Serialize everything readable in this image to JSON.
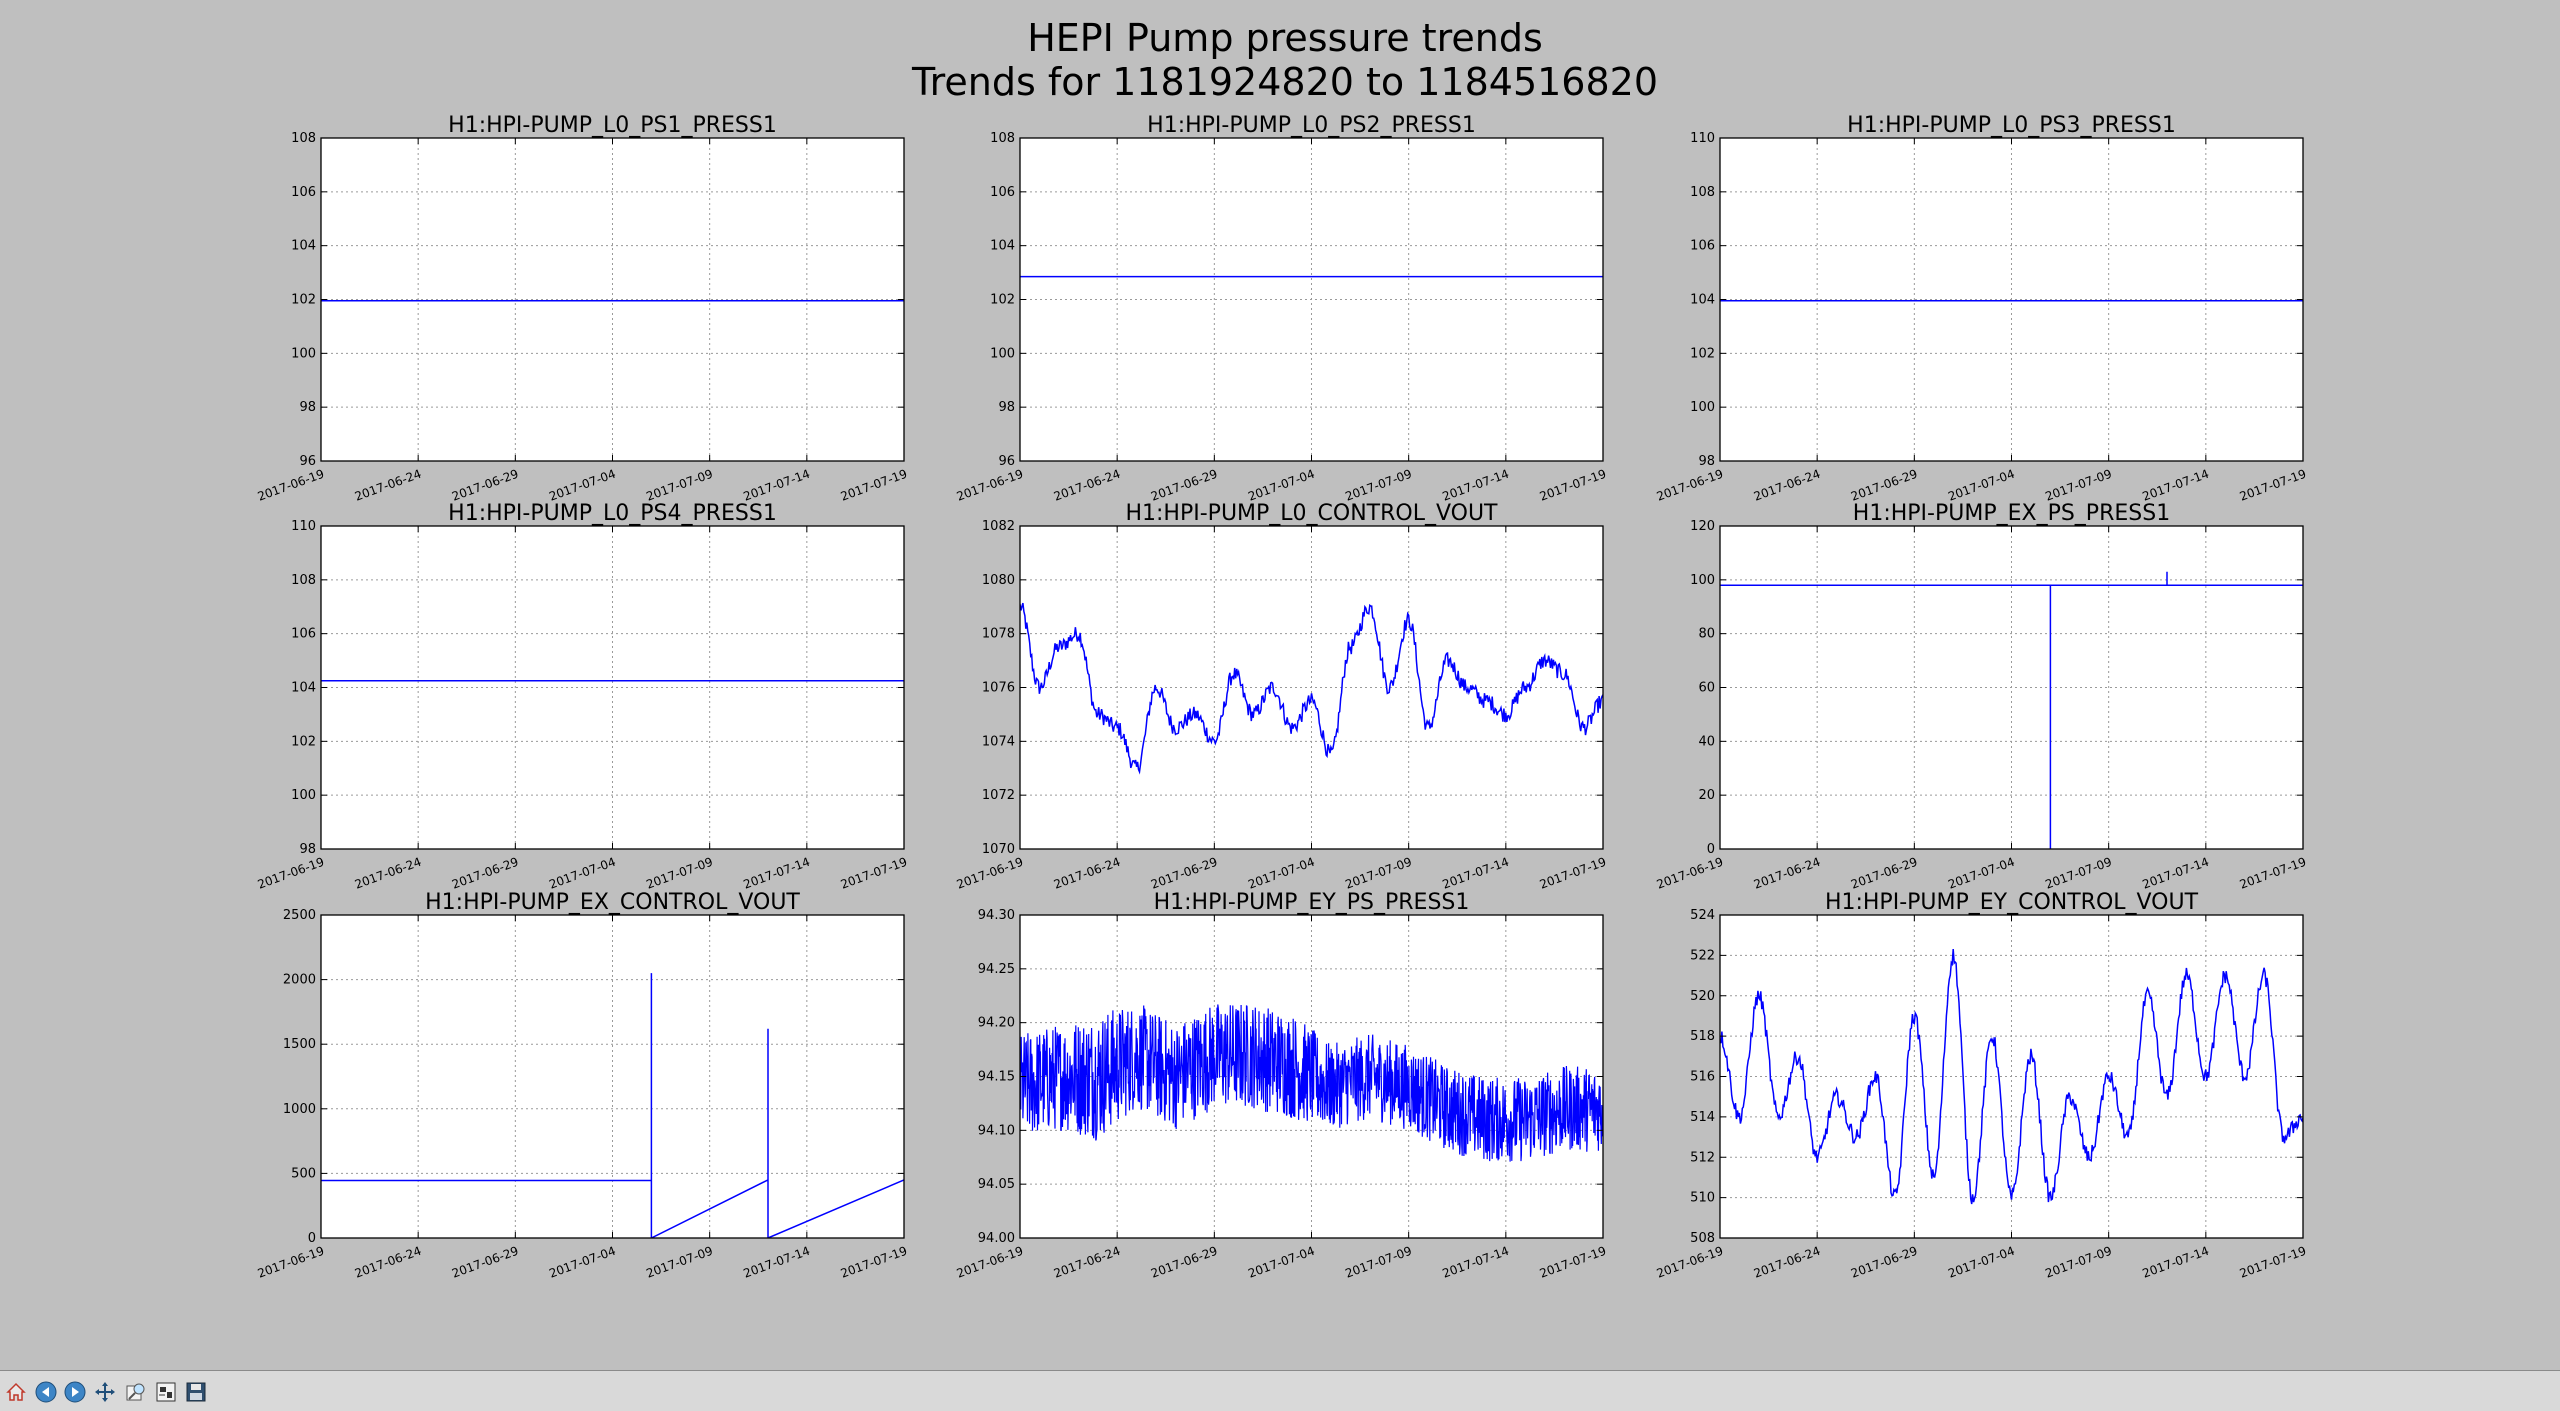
{
  "figure": {
    "title": "HEPI Pump pressure trends",
    "subtitle": "Trends for 1181924820 to 1184516820"
  },
  "chart_data": [
    {
      "type": "line",
      "title": "H1:HPI-PUMP_L0_PS1_PRESS1",
      "ylim": [
        96,
        108
      ],
      "yticks": [
        96,
        98,
        100,
        102,
        104,
        106,
        108
      ],
      "ytick_labels": [
        "96",
        "98",
        "100",
        "102",
        "104",
        "106",
        "108"
      ],
      "xticks": [
        "2017-06-19",
        "2017-06-24",
        "2017-06-29",
        "2017-07-04",
        "2017-07-09",
        "2017-07-14",
        "2017-07-19"
      ],
      "xlim": [
        "2017-06-19",
        "2017-07-19"
      ],
      "grid": true,
      "series": [
        {
          "color": "#0000ff",
          "x": [
            "2017-06-19",
            "2017-07-19"
          ],
          "y": [
            101.95,
            101.95
          ]
        }
      ]
    },
    {
      "type": "line",
      "title": "H1:HPI-PUMP_L0_PS2_PRESS1",
      "ylim": [
        96,
        108
      ],
      "yticks": [
        96,
        98,
        100,
        102,
        104,
        106,
        108
      ],
      "ytick_labels": [
        "96",
        "98",
        "100",
        "102",
        "104",
        "106",
        "108"
      ],
      "xticks": [
        "2017-06-19",
        "2017-06-24",
        "2017-06-29",
        "2017-07-04",
        "2017-07-09",
        "2017-07-14",
        "2017-07-19"
      ],
      "xlim": [
        "2017-06-19",
        "2017-07-19"
      ],
      "grid": true,
      "series": [
        {
          "color": "#0000ff",
          "x": [
            "2017-06-19",
            "2017-07-19"
          ],
          "y": [
            102.85,
            102.85
          ]
        }
      ]
    },
    {
      "type": "line",
      "title": "H1:HPI-PUMP_L0_PS3_PRESS1",
      "ylim": [
        98,
        110
      ],
      "yticks": [
        98,
        100,
        102,
        104,
        106,
        108,
        110
      ],
      "ytick_labels": [
        "98",
        "100",
        "102",
        "104",
        "106",
        "108",
        "110"
      ],
      "xticks": [
        "2017-06-19",
        "2017-06-24",
        "2017-06-29",
        "2017-07-04",
        "2017-07-09",
        "2017-07-14",
        "2017-07-19"
      ],
      "xlim": [
        "2017-06-19",
        "2017-07-19"
      ],
      "grid": true,
      "series": [
        {
          "color": "#0000ff",
          "x": [
            "2017-06-19",
            "2017-07-19"
          ],
          "y": [
            103.95,
            103.95
          ]
        }
      ]
    },
    {
      "type": "line",
      "title": "H1:HPI-PUMP_L0_PS4_PRESS1",
      "ylim": [
        98,
        110
      ],
      "yticks": [
        98,
        100,
        102,
        104,
        106,
        108,
        110
      ],
      "ytick_labels": [
        "98",
        "100",
        "102",
        "104",
        "106",
        "108",
        "110"
      ],
      "xticks": [
        "2017-06-19",
        "2017-06-24",
        "2017-06-29",
        "2017-07-04",
        "2017-07-09",
        "2017-07-14",
        "2017-07-19"
      ],
      "xlim": [
        "2017-06-19",
        "2017-07-19"
      ],
      "grid": true,
      "series": [
        {
          "color": "#0000ff",
          "x": [
            "2017-06-19",
            "2017-07-19"
          ],
          "y": [
            104.25,
            104.25
          ]
        }
      ]
    },
    {
      "type": "line",
      "title": "H1:HPI-PUMP_L0_CONTROL_VOUT",
      "ylim": [
        1070,
        1082
      ],
      "yticks": [
        1070,
        1072,
        1074,
        1076,
        1078,
        1080,
        1082
      ],
      "ytick_labels": [
        "1070",
        "1072",
        "1074",
        "1076",
        "1078",
        "1080",
        "1082"
      ],
      "xticks": [
        "2017-06-19",
        "2017-06-24",
        "2017-06-29",
        "2017-07-04",
        "2017-07-09",
        "2017-07-14",
        "2017-07-19"
      ],
      "xlim": [
        "2017-06-19",
        "2017-07-19"
      ],
      "grid": true,
      "series": [
        {
          "color": "#0000ff",
          "x": [
            "2017-06-19",
            "2017-06-20",
            "2017-06-21",
            "2017-06-22",
            "2017-06-23",
            "2017-06-24",
            "2017-06-25",
            "2017-06-26",
            "2017-06-27",
            "2017-06-28",
            "2017-06-29",
            "2017-06-30",
            "2017-07-01",
            "2017-07-02",
            "2017-07-03",
            "2017-07-04",
            "2017-07-05",
            "2017-07-06",
            "2017-07-07",
            "2017-07-08",
            "2017-07-09",
            "2017-07-10",
            "2017-07-11",
            "2017-07-12",
            "2017-07-13",
            "2017-07-14",
            "2017-07-15",
            "2017-07-16",
            "2017-07-17",
            "2017-07-18",
            "2017-07-19"
          ],
          "y": [
            1079,
            1076,
            1077.5,
            1078,
            1075,
            1074.5,
            1073,
            1076,
            1074.5,
            1075,
            1074,
            1076.5,
            1075,
            1076,
            1074.5,
            1075.5,
            1073.5,
            1077.5,
            1079,
            1076,
            1078.5,
            1074.5,
            1077,
            1076,
            1075.5,
            1075,
            1076,
            1077,
            1076.5,
            1074.5,
            1075.5
          ]
        }
      ]
    },
    {
      "type": "line",
      "title": "H1:HPI-PUMP_EX_PS_PRESS1",
      "ylim": [
        0,
        120
      ],
      "yticks": [
        0,
        20,
        40,
        60,
        80,
        100,
        120
      ],
      "ytick_labels": [
        "0",
        "20",
        "40",
        "60",
        "80",
        "100",
        "120"
      ],
      "xticks": [
        "2017-06-19",
        "2017-06-24",
        "2017-06-29",
        "2017-07-04",
        "2017-07-09",
        "2017-07-14",
        "2017-07-19"
      ],
      "xlim": [
        "2017-06-19",
        "2017-07-19"
      ],
      "grid": true,
      "series": [
        {
          "color": "#0000ff",
          "x": [
            "2017-06-19",
            "2017-07-06",
            "2017-07-06",
            "2017-07-06",
            "2017-07-12",
            "2017-07-12",
            "2017-07-12",
            "2017-07-19"
          ],
          "y": [
            98,
            98,
            0,
            98,
            98,
            103,
            98,
            98
          ]
        }
      ]
    },
    {
      "type": "line",
      "title": "H1:HPI-PUMP_EX_CONTROL_VOUT",
      "ylim": [
        0,
        2500
      ],
      "yticks": [
        0,
        500,
        1000,
        1500,
        2000,
        2500
      ],
      "ytick_labels": [
        "0",
        "500",
        "1000",
        "1500",
        "2000",
        "2500"
      ],
      "xticks": [
        "2017-06-19",
        "2017-06-24",
        "2017-06-29",
        "2017-07-04",
        "2017-07-09",
        "2017-07-14",
        "2017-07-19"
      ],
      "xlim": [
        "2017-06-19",
        "2017-07-19"
      ],
      "grid": true,
      "series": [
        {
          "color": "#0000ff",
          "x": [
            "2017-06-19",
            "2017-07-06",
            "2017-07-06",
            "2017-07-06",
            "2017-07-12",
            "2017-07-12",
            "2017-07-12",
            "2017-07-19"
          ],
          "y": [
            445,
            445,
            2050,
            0,
            450,
            1620,
            0,
            450
          ]
        }
      ]
    },
    {
      "type": "line",
      "title": "H1:HPI-PUMP_EY_PS_PRESS1",
      "ylim": [
        94.0,
        94.3
      ],
      "yticks": [
        94.0,
        94.05,
        94.1,
        94.15,
        94.2,
        94.25,
        94.3
      ],
      "ytick_labels": [
        "94.00",
        "94.05",
        "94.10",
        "94.15",
        "94.20",
        "94.25",
        "94.30"
      ],
      "xticks": [
        "2017-06-19",
        "2017-06-24",
        "2017-06-29",
        "2017-07-04",
        "2017-07-09",
        "2017-07-14",
        "2017-07-19"
      ],
      "xlim": [
        "2017-06-19",
        "2017-07-19"
      ],
      "grid": true,
      "band": true,
      "series": [
        {
          "color": "#0000ff",
          "x": [
            "2017-06-19",
            "2017-06-21",
            "2017-06-23",
            "2017-06-25",
            "2017-06-27",
            "2017-06-29",
            "2017-07-01",
            "2017-07-03",
            "2017-07-05",
            "2017-07-07",
            "2017-07-09",
            "2017-07-11",
            "2017-07-13",
            "2017-07-15",
            "2017-07-17",
            "2017-07-19"
          ],
          "y": [
            94.14,
            94.15,
            94.15,
            94.17,
            94.15,
            94.17,
            94.17,
            94.16,
            94.14,
            94.15,
            94.14,
            94.12,
            94.11,
            94.11,
            94.12,
            94.12
          ],
          "spread": [
            0.05,
            0.05,
            0.06,
            0.05,
            0.05,
            0.05,
            0.05,
            0.05,
            0.04,
            0.04,
            0.04,
            0.04,
            0.04,
            0.04,
            0.04,
            0.04
          ]
        }
      ]
    },
    {
      "type": "line",
      "title": "H1:HPI-PUMP_EY_CONTROL_VOUT",
      "ylim": [
        508,
        524
      ],
      "yticks": [
        508,
        510,
        512,
        514,
        516,
        518,
        520,
        522,
        524
      ],
      "ytick_labels": [
        "508",
        "510",
        "512",
        "514",
        "516",
        "518",
        "520",
        "522",
        "524"
      ],
      "xticks": [
        "2017-06-19",
        "2017-06-24",
        "2017-06-29",
        "2017-07-04",
        "2017-07-09",
        "2017-07-14",
        "2017-07-19"
      ],
      "xlim": [
        "2017-06-19",
        "2017-07-19"
      ],
      "grid": true,
      "series": [
        {
          "color": "#0000ff",
          "x": [
            "2017-06-19",
            "2017-06-20",
            "2017-06-21",
            "2017-06-22",
            "2017-06-23",
            "2017-06-24",
            "2017-06-25",
            "2017-06-26",
            "2017-06-27",
            "2017-06-28",
            "2017-06-29",
            "2017-06-30",
            "2017-07-01",
            "2017-07-02",
            "2017-07-03",
            "2017-07-04",
            "2017-07-05",
            "2017-07-06",
            "2017-07-07",
            "2017-07-08",
            "2017-07-09",
            "2017-07-10",
            "2017-07-11",
            "2017-07-12",
            "2017-07-13",
            "2017-07-14",
            "2017-07-15",
            "2017-07-16",
            "2017-07-17",
            "2017-07-18",
            "2017-07-19"
          ],
          "y": [
            518,
            514,
            520,
            514,
            517,
            512,
            515,
            513,
            516,
            510,
            519,
            511,
            522,
            510,
            518,
            510,
            517,
            510,
            515,
            512,
            516,
            513,
            520,
            515,
            521,
            516,
            521,
            516,
            521,
            513,
            514
          ]
        }
      ]
    }
  ],
  "toolbar": [
    {
      "icon": "home-icon"
    },
    {
      "icon": "back-icon"
    },
    {
      "icon": "forward-icon"
    },
    {
      "icon": "pan-icon"
    },
    {
      "icon": "zoom-icon"
    },
    {
      "icon": "subplots-icon"
    },
    {
      "icon": "save-icon"
    }
  ]
}
